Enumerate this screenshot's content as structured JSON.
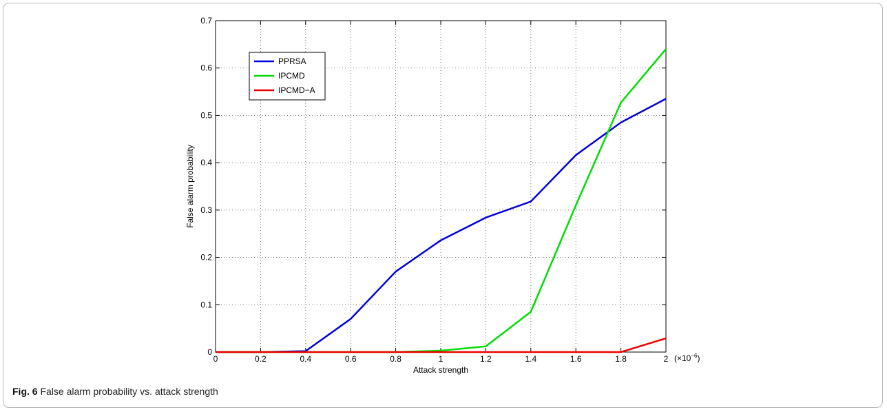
{
  "caption": {
    "label": "Fig. 6",
    "text": " False alarm probability vs. attack strength"
  },
  "chart_data": {
    "type": "line",
    "xlabel": "Attack strength",
    "ylabel": "False alarm probability",
    "x_multiplier": "(×10",
    "x_multiplier_exp": "−6",
    "x_multiplier_close": ")",
    "xlim": [
      0,
      2
    ],
    "ylim": [
      0,
      0.7
    ],
    "x_ticks": [
      0,
      0.2,
      0.4,
      0.6,
      0.8,
      1,
      1.2,
      1.4,
      1.6,
      1.8,
      2
    ],
    "x_tick_labels": [
      "0",
      "0.2",
      "0.4",
      "0.6",
      "0.8",
      "1",
      "1.2",
      "1.4",
      "1.6",
      "1.8",
      "2"
    ],
    "y_ticks": [
      0,
      0.1,
      0.2,
      0.3,
      0.4,
      0.5,
      0.6,
      0.7
    ],
    "y_tick_labels": [
      "0",
      "0.1",
      "0.2",
      "0.3",
      "0.4",
      "0.5",
      "0.6",
      "0.7"
    ],
    "grid": true,
    "legend_position": "top-left",
    "x": [
      0,
      0.2,
      0.4,
      0.6,
      0.8,
      1,
      1.2,
      1.4,
      1.6,
      1.8,
      2
    ],
    "series": [
      {
        "name": "PPRSA",
        "color": "#0000dd",
        "values": [
          0,
          0,
          0.002,
          0.07,
          0.17,
          0.236,
          0.284,
          0.318,
          0.416,
          0.485,
          0.535
        ]
      },
      {
        "name": "IPCMD",
        "color": "#00dd00",
        "values": [
          0,
          0,
          0,
          0,
          0,
          0.003,
          0.012,
          0.085,
          0.31,
          0.527,
          0.64
        ]
      },
      {
        "name": "IPCMD−A",
        "color": "#ee0000",
        "values": [
          0,
          0,
          0,
          0,
          0,
          0,
          0,
          0,
          0,
          0,
          0.029
        ]
      }
    ]
  }
}
